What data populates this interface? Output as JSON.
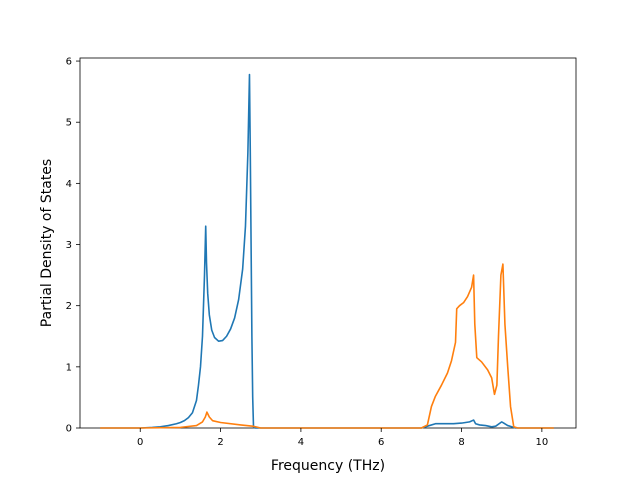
{
  "chart_data": {
    "type": "line",
    "title": "",
    "xlabel": "Frequency (THz)",
    "ylabel": "Partial Density of States",
    "xlim": [
      -1.5,
      10.85
    ],
    "ylim": [
      0,
      6.05
    ],
    "xticks": [
      0,
      2,
      4,
      6,
      8,
      10
    ],
    "yticks": [
      0,
      1,
      2,
      3,
      4,
      5,
      6
    ],
    "grid": false,
    "legend": "none",
    "series": [
      {
        "color": "#1f77b4",
        "x": [
          -1.0,
          -0.5,
          0.0,
          0.3,
          0.5,
          0.7,
          0.9,
          1.0,
          1.1,
          1.2,
          1.3,
          1.4,
          1.45,
          1.5,
          1.55,
          1.6,
          1.63,
          1.65,
          1.68,
          1.72,
          1.78,
          1.85,
          1.95,
          2.05,
          2.15,
          2.25,
          2.35,
          2.45,
          2.55,
          2.62,
          2.68,
          2.72,
          2.74,
          2.76,
          2.78,
          2.8,
          2.82,
          2.85,
          3.0,
          5.0,
          7.0,
          7.2,
          7.35,
          7.6,
          7.8,
          8.0,
          8.2,
          8.3,
          8.35,
          8.45,
          8.6,
          8.75,
          8.85,
          9.0,
          9.05,
          9.15,
          9.25,
          9.35,
          9.5,
          10.0,
          10.3
        ],
        "y": [
          0,
          0,
          0,
          0.01,
          0.02,
          0.04,
          0.07,
          0.09,
          0.12,
          0.17,
          0.25,
          0.45,
          0.7,
          1.0,
          1.5,
          2.5,
          3.3,
          2.7,
          2.2,
          1.85,
          1.6,
          1.48,
          1.42,
          1.43,
          1.5,
          1.62,
          1.8,
          2.1,
          2.6,
          3.3,
          4.5,
          5.78,
          4.5,
          3.0,
          1.5,
          0.5,
          0.02,
          0,
          0,
          0,
          0,
          0.04,
          0.07,
          0.07,
          0.07,
          0.08,
          0.1,
          0.13,
          0.07,
          0.05,
          0.04,
          0.02,
          0.03,
          0.1,
          0.08,
          0.04,
          0.02,
          0,
          0,
          0,
          0
        ]
      },
      {
        "color": "#ff7f0e",
        "x": [
          -1.0,
          0.0,
          1.0,
          1.4,
          1.55,
          1.62,
          1.66,
          1.72,
          1.8,
          2.0,
          2.5,
          2.8,
          3.0,
          5.0,
          7.0,
          7.15,
          7.25,
          7.35,
          7.5,
          7.65,
          7.75,
          7.85,
          7.88,
          7.95,
          8.05,
          8.15,
          8.25,
          8.3,
          8.33,
          8.38,
          8.5,
          8.65,
          8.75,
          8.82,
          8.88,
          8.92,
          8.98,
          9.03,
          9.08,
          9.15,
          9.22,
          9.3,
          9.4,
          9.6,
          10.3
        ],
        "y": [
          0,
          0,
          0.01,
          0.04,
          0.1,
          0.18,
          0.26,
          0.18,
          0.12,
          0.09,
          0.05,
          0.03,
          0,
          0,
          0,
          0.05,
          0.35,
          0.52,
          0.7,
          0.9,
          1.1,
          1.4,
          1.95,
          2.0,
          2.05,
          2.15,
          2.3,
          2.5,
          1.7,
          1.15,
          1.08,
          0.95,
          0.82,
          0.55,
          0.7,
          1.5,
          2.5,
          2.68,
          1.7,
          1.0,
          0.35,
          0.02,
          0,
          0,
          0
        ]
      }
    ]
  }
}
